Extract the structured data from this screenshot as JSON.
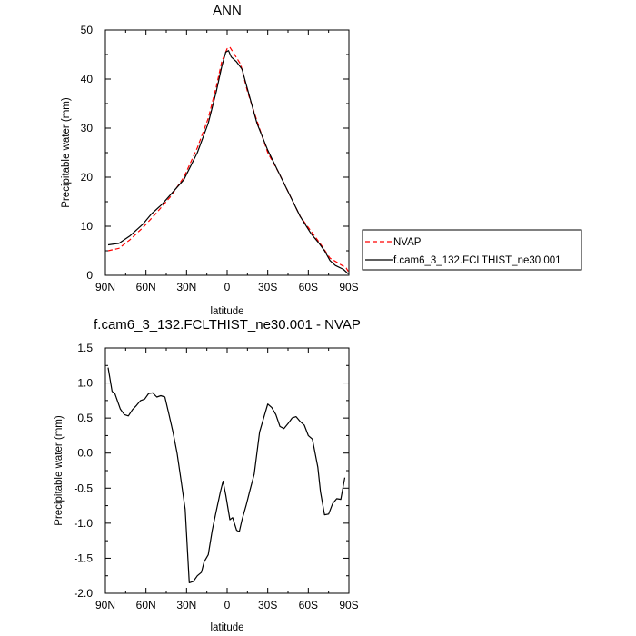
{
  "chart_data": [
    {
      "type": "line",
      "title": "ANN",
      "xlabel": "latitude",
      "ylabel": "Precipitable water (mm)",
      "xlim": [
        90,
        -90
      ],
      "ylim": [
        0,
        50
      ],
      "xticks": [
        "90N",
        "60N",
        "30N",
        "0",
        "30S",
        "60S",
        "90S"
      ],
      "yticks": [
        "0",
        "10",
        "20",
        "30",
        "40",
        "50"
      ],
      "legend_position": "right",
      "series": [
        {
          "name": "NVAP",
          "color": "#ff0000",
          "dash": true,
          "points": [
            [
              88,
              5.0
            ],
            [
              80,
              5.5
            ],
            [
              72,
              7.2
            ],
            [
              62,
              9.8
            ],
            [
              52,
              12.8
            ],
            [
              42,
              16.0
            ],
            [
              32,
              20.0
            ],
            [
              22,
              26.0
            ],
            [
              14,
              32.0
            ],
            [
              8,
              38.5
            ],
            [
              4,
              43.5
            ],
            [
              0,
              46.2
            ],
            [
              -2,
              46.5
            ],
            [
              -5,
              45.2
            ],
            [
              -10,
              43.0
            ],
            [
              -15,
              37.5
            ],
            [
              -22,
              31.5
            ],
            [
              -30,
              25.0
            ],
            [
              -38,
              21.0
            ],
            [
              -46,
              16.5
            ],
            [
              -54,
              12.0
            ],
            [
              -62,
              9.0
            ],
            [
              -70,
              6.0
            ],
            [
              -76,
              3.5
            ],
            [
              -82,
              2.5
            ],
            [
              -88,
              1.5
            ],
            [
              -89.5,
              0.8
            ]
          ]
        },
        {
          "name": "f.cam6_3_132.FCLTHIST_ne30.001",
          "color": "#000000",
          "dash": false,
          "points": [
            [
              88,
              6.2
            ],
            [
              80,
              6.5
            ],
            [
              72,
              8.0
            ],
            [
              62,
              10.5
            ],
            [
              56,
              12.5
            ],
            [
              48,
              14.5
            ],
            [
              40,
              17.0
            ],
            [
              32,
              19.5
            ],
            [
              22,
              25.0
            ],
            [
              14,
              31.0
            ],
            [
              8,
              37.5
            ],
            [
              4,
              42.5
            ],
            [
              1,
              45.5
            ],
            [
              -1,
              45.8
            ],
            [
              -3,
              44.5
            ],
            [
              -7,
              43.5
            ],
            [
              -11,
              42.0
            ],
            [
              -16,
              37.0
            ],
            [
              -22,
              31.0
            ],
            [
              -30,
              25.5
            ],
            [
              -38,
              21.0
            ],
            [
              -46,
              16.5
            ],
            [
              -54,
              12.0
            ],
            [
              -62,
              8.5
            ],
            [
              -68,
              6.5
            ],
            [
              -72,
              5.0
            ],
            [
              -76,
              3.0
            ],
            [
              -80,
              2.0
            ],
            [
              -86,
              1.2
            ],
            [
              -89.5,
              0.3
            ]
          ]
        }
      ]
    },
    {
      "type": "line",
      "title": "f.cam6_3_132.FCLTHIST_ne30.001 - NVAP",
      "xlabel": "latitude",
      "ylabel": "Precipitable water (mm)",
      "xlim": [
        90,
        -90
      ],
      "ylim": [
        -2.0,
        1.5
      ],
      "xticks": [
        "90N",
        "60N",
        "30N",
        "0",
        "30S",
        "60S",
        "90S"
      ],
      "yticks": [
        "-2.0",
        "-1.5",
        "-1.0",
        "-0.5",
        "0.0",
        "0.5",
        "1.0",
        "1.5"
      ],
      "series": [
        {
          "color": "#000000",
          "dash": false,
          "points": [
            [
              88,
              1.22
            ],
            [
              85,
              0.88
            ],
            [
              83,
              0.85
            ],
            [
              79,
              0.63
            ],
            [
              76,
              0.55
            ],
            [
              73,
              0.53
            ],
            [
              70,
              0.62
            ],
            [
              67,
              0.68
            ],
            [
              64,
              0.75
            ],
            [
              61,
              0.77
            ],
            [
              58,
              0.85
            ],
            [
              55,
              0.86
            ],
            [
              52,
              0.8
            ],
            [
              49,
              0.82
            ],
            [
              46,
              0.8
            ],
            [
              43,
              0.55
            ],
            [
              40,
              0.3
            ],
            [
              37,
              0.0
            ],
            [
              34,
              -0.4
            ],
            [
              31,
              -0.8
            ],
            [
              28,
              -1.85
            ],
            [
              25,
              -1.83
            ],
            [
              22,
              -1.75
            ],
            [
              19,
              -1.7
            ],
            [
              17,
              -1.55
            ],
            [
              14,
              -1.45
            ],
            [
              11,
              -1.1
            ],
            [
              8,
              -0.82
            ],
            [
              5,
              -0.55
            ],
            [
              3,
              -0.4
            ],
            [
              1,
              -0.6
            ],
            [
              -2,
              -0.95
            ],
            [
              -4,
              -0.92
            ],
            [
              -7,
              -1.1
            ],
            [
              -9,
              -1.12
            ],
            [
              -11,
              -0.95
            ],
            [
              -14,
              -0.75
            ],
            [
              -17,
              -0.52
            ],
            [
              -20,
              -0.3
            ],
            [
              -24,
              0.3
            ],
            [
              -27,
              0.5
            ],
            [
              -30,
              0.7
            ],
            [
              -33,
              0.65
            ],
            [
              -36,
              0.55
            ],
            [
              -39,
              0.38
            ],
            [
              -42,
              0.35
            ],
            [
              -45,
              0.42
            ],
            [
              -48,
              0.5
            ],
            [
              -51,
              0.52
            ],
            [
              -54,
              0.45
            ],
            [
              -57,
              0.4
            ],
            [
              -60,
              0.25
            ],
            [
              -63,
              0.2
            ],
            [
              -67,
              -0.2
            ],
            [
              -69,
              -0.55
            ],
            [
              -72,
              -0.88
            ],
            [
              -75,
              -0.87
            ],
            [
              -78,
              -0.72
            ],
            [
              -81,
              -0.65
            ],
            [
              -84,
              -0.66
            ],
            [
              -87,
              -0.35
            ]
          ]
        }
      ]
    }
  ]
}
